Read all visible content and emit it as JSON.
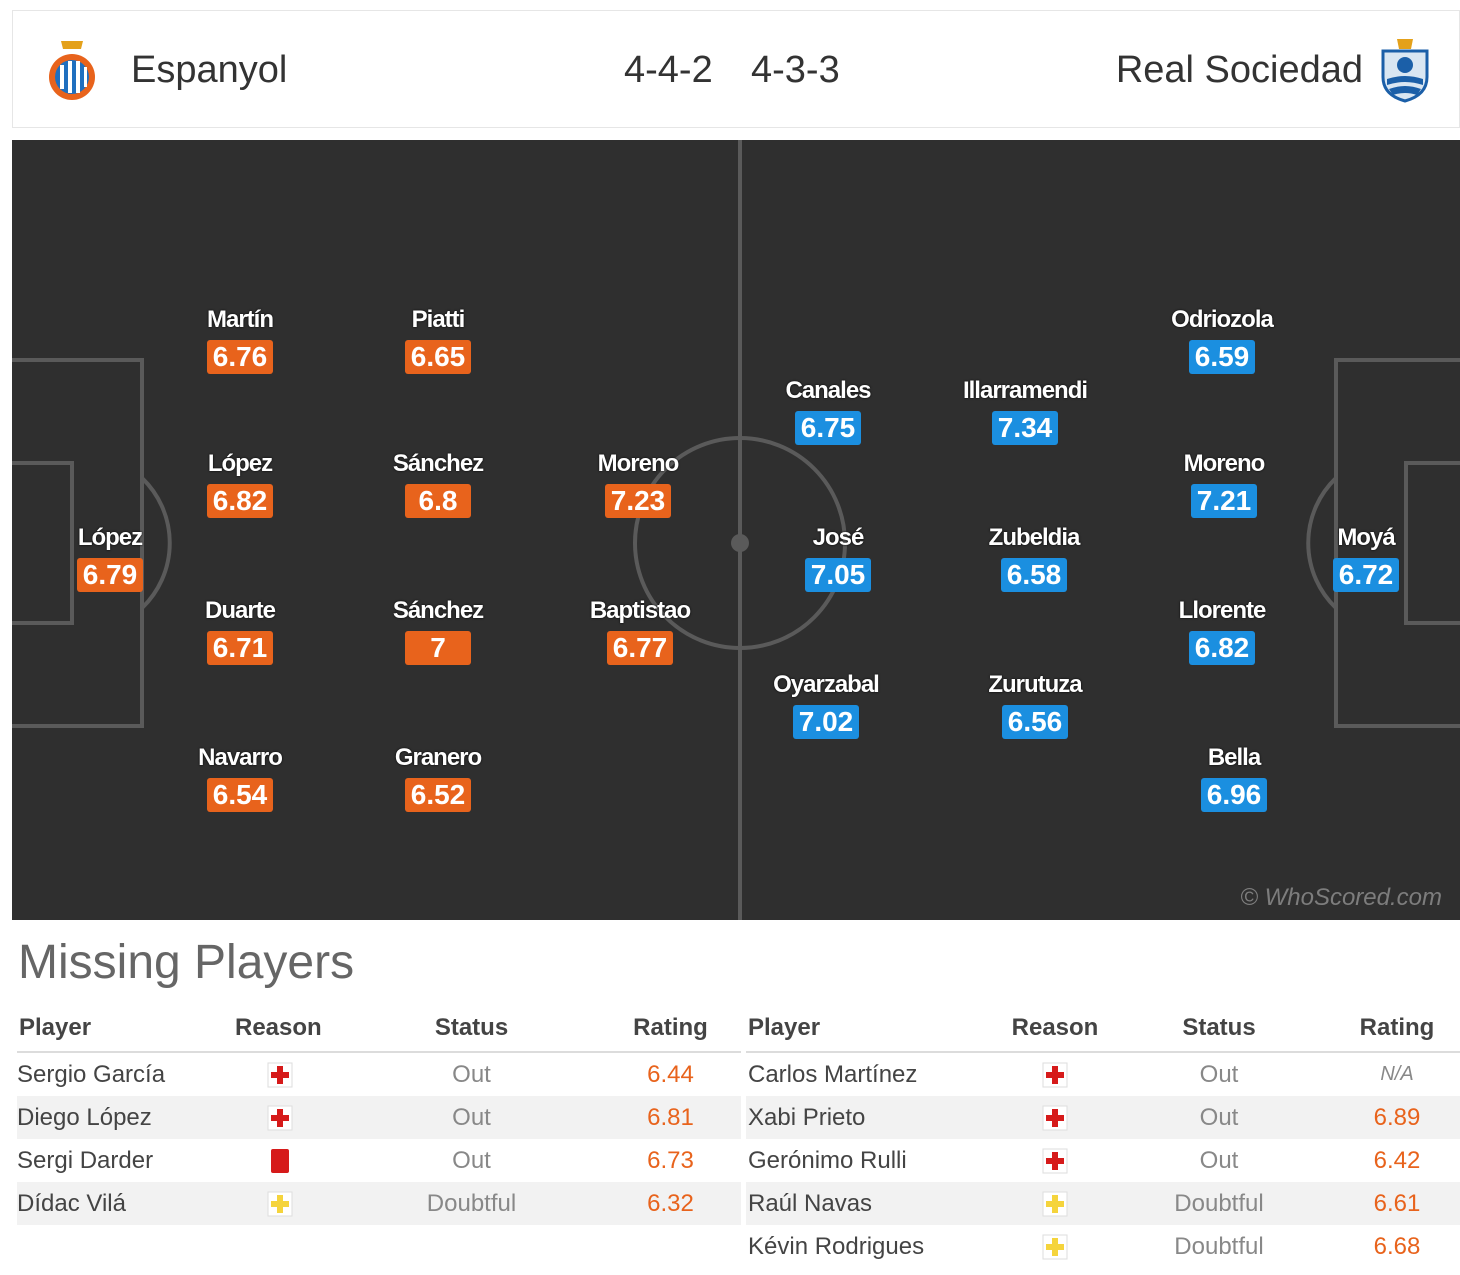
{
  "header": {
    "home_team": "Espanyol",
    "home_formation": "4-4-2",
    "away_formation": "4-3-3",
    "away_team": "Real Sociedad"
  },
  "colors": {
    "home_rating": "#e8631c",
    "away_rating": "#1b8fe0",
    "pitch": "#2f2f2f",
    "pitch_lines": "#5a5a5a"
  },
  "pitch": {
    "home_players": [
      {
        "name": "López",
        "rating": "6.79"
      },
      {
        "name": "Martín",
        "rating": "6.76"
      },
      {
        "name": "López",
        "rating": "6.82"
      },
      {
        "name": "Duarte",
        "rating": "6.71"
      },
      {
        "name": "Navarro",
        "rating": "6.54"
      },
      {
        "name": "Piatti",
        "rating": "6.65"
      },
      {
        "name": "Sánchez",
        "rating": "6.8"
      },
      {
        "name": "Sánchez",
        "rating": "7"
      },
      {
        "name": "Granero",
        "rating": "6.52"
      },
      {
        "name": "Moreno",
        "rating": "7.23"
      },
      {
        "name": "Baptistao",
        "rating": "6.77"
      }
    ],
    "away_players": [
      {
        "name": "Canales",
        "rating": "6.75"
      },
      {
        "name": "José",
        "rating": "7.05"
      },
      {
        "name": "Oyarzabal",
        "rating": "7.02"
      },
      {
        "name": "Illarramendi",
        "rating": "7.34"
      },
      {
        "name": "Zubeldia",
        "rating": "6.58"
      },
      {
        "name": "Zurutuza",
        "rating": "6.56"
      },
      {
        "name": "Odriozola",
        "rating": "6.59"
      },
      {
        "name": "Moreno",
        "rating": "7.21"
      },
      {
        "name": "Llorente",
        "rating": "6.82"
      },
      {
        "name": "Bella",
        "rating": "6.96"
      },
      {
        "name": "Moyá",
        "rating": "6.72"
      }
    ],
    "watermark": "© WhoScored.com"
  },
  "missing": {
    "title": "Missing Players",
    "headers": {
      "player": "Player",
      "reason": "Reason",
      "status": "Status",
      "rating": "Rating"
    },
    "home": [
      {
        "player": "Sergio García",
        "reason": "injury-icon",
        "status": "Out",
        "rating": "6.44"
      },
      {
        "player": "Diego López",
        "reason": "injury-icon",
        "status": "Out",
        "rating": "6.81"
      },
      {
        "player": "Sergi Darder",
        "reason": "red-card-icon",
        "status": "Out",
        "rating": "6.73"
      },
      {
        "player": "Dídac Vilá",
        "reason": "doubtful-icon",
        "status": "Doubtful",
        "rating": "6.32"
      }
    ],
    "away": [
      {
        "player": "Carlos Martínez",
        "reason": "injury-icon",
        "status": "Out",
        "rating": "N/A"
      },
      {
        "player": "Xabi Prieto",
        "reason": "injury-icon",
        "status": "Out",
        "rating": "6.89"
      },
      {
        "player": "Gerónimo Rulli",
        "reason": "injury-icon",
        "status": "Out",
        "rating": "6.42"
      },
      {
        "player": "Raúl Navas",
        "reason": "doubtful-icon",
        "status": "Doubtful",
        "rating": "6.61"
      },
      {
        "player": "Kévin Rodrigues",
        "reason": "doubtful-icon",
        "status": "Doubtful",
        "rating": "6.68"
      }
    ]
  }
}
